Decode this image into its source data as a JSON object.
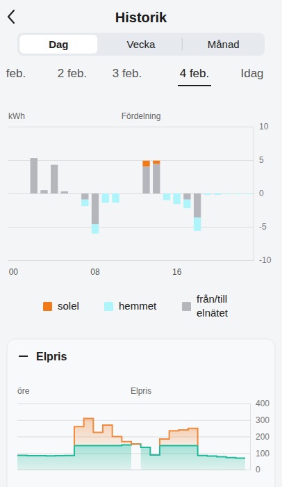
{
  "header": {
    "title": "Historik",
    "tabs": [
      "Dag",
      "Vecka",
      "Månad"
    ],
    "active_tab": "Dag"
  },
  "dates": {
    "items": [
      "feb.",
      "2 feb.",
      "3 feb.",
      "4 feb.",
      "Idag"
    ],
    "active": "4 feb."
  },
  "panel": {
    "title": "Elpris"
  },
  "chart_data": [
    {
      "type": "bar",
      "title": "Fördelning",
      "y_label": "kWh",
      "categories": [
        "00",
        null,
        null,
        null,
        null,
        null,
        null,
        null,
        "08",
        null,
        null,
        null,
        null,
        null,
        null,
        null,
        "16",
        null,
        null,
        null,
        null,
        null,
        null,
        null
      ],
      "series": [
        {
          "name": "solel",
          "color": "#f07a1a",
          "values": [
            0,
            0,
            0,
            0,
            0,
            0,
            0,
            0,
            0,
            0,
            0,
            0,
            0,
            0.9,
            0.5,
            0,
            0,
            0,
            0,
            0,
            0,
            0,
            0,
            0
          ]
        },
        {
          "name": "hemmet",
          "color": "#aef4fb",
          "values": [
            0,
            0,
            0,
            0,
            0,
            0,
            0,
            -1.0,
            -1.4,
            -1.4,
            -1.4,
            0,
            0,
            0,
            0,
            -1.0,
            -1.6,
            -1.3,
            -2.0,
            -0.2,
            -0.2,
            -0.1,
            -0.1,
            -0.1
          ]
        },
        {
          "name": "från/till elnätet",
          "color": "#b4b6bb",
          "values": [
            0,
            0,
            5.3,
            0.5,
            4.3,
            0.3,
            0,
            -0.9,
            -4.6,
            0,
            0,
            0,
            0,
            4.0,
            4.4,
            0,
            0,
            -0.9,
            -3.6,
            0,
            0,
            0,
            0,
            0
          ]
        }
      ],
      "stacked": true,
      "ylim": [
        -10,
        10
      ],
      "yticks": [
        10,
        5,
        0,
        -5,
        -10
      ],
      "grid": true,
      "legend": "bottom"
    },
    {
      "type": "line",
      "title": "Elpris",
      "y_label": "öre",
      "line_style": "step",
      "x": [
        0,
        1,
        2,
        3,
        4,
        5,
        6,
        7,
        8,
        9,
        10,
        11,
        12,
        13,
        14,
        15,
        16,
        17,
        18,
        19,
        20,
        21,
        22,
        23
      ],
      "xlim": [
        0,
        24
      ],
      "series": [
        {
          "color": "#f08a3c",
          "values": [
            null,
            null,
            null,
            null,
            null,
            null,
            260,
            310,
            225,
            270,
            200,
            170,
            155,
            null,
            null,
            185,
            235,
            240,
            250,
            null,
            null,
            null,
            null,
            null
          ]
        },
        {
          "color": "#1db99a",
          "values": [
            86,
            84,
            84,
            83,
            84,
            85,
            145,
            145,
            145,
            145,
            145,
            150,
            155,
            135,
            88,
            145,
            145,
            145,
            145,
            85,
            82,
            78,
            73,
            70
          ]
        }
      ],
      "ylim": [
        0,
        400
      ],
      "yticks": [
        0,
        100,
        200,
        300,
        400
      ],
      "grid": true,
      "tick_labels": "y"
    }
  ]
}
